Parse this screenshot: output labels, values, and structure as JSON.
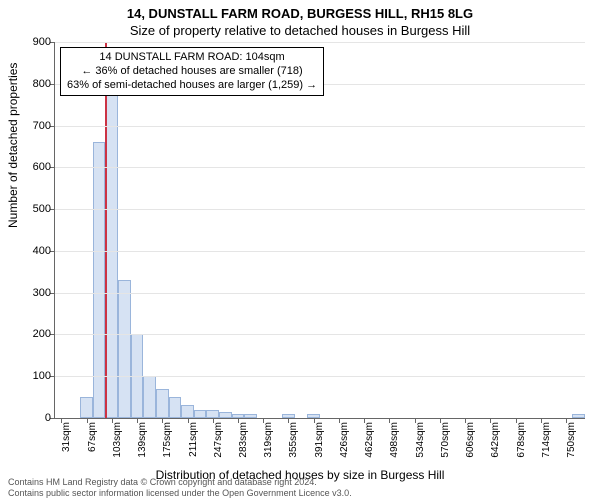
{
  "header": {
    "address": "14, DUNSTALL FARM ROAD, BURGESS HILL, RH15 8LG",
    "subtitle": "Size of property relative to detached houses in Burgess Hill"
  },
  "chart": {
    "type": "histogram",
    "ylabel": "Number of detached properties",
    "xlabel": "Distribution of detached houses by size in Burgess Hill",
    "ymax": 900,
    "ytick_step": 100,
    "grid_color": "#e5e5e5",
    "axis_color": "#666666",
    "bar_fill": "#d6e2f3",
    "bar_stroke": "#9ab5db",
    "highlight_color": "#cc3344",
    "highlight_x_index": 4,
    "xtick_labels": [
      "31sqm",
      "67sqm",
      "103sqm",
      "139sqm",
      "175sqm",
      "211sqm",
      "247sqm",
      "283sqm",
      "319sqm",
      "355sqm",
      "391sqm",
      "426sqm",
      "462sqm",
      "498sqm",
      "534sqm",
      "570sqm",
      "606sqm",
      "642sqm",
      "678sqm",
      "714sqm",
      "750sqm"
    ],
    "bar_values": [
      0,
      0,
      50,
      660,
      790,
      330,
      200,
      100,
      70,
      50,
      30,
      20,
      20,
      15,
      10,
      10,
      0,
      0,
      10,
      0,
      10,
      0,
      0,
      0,
      0,
      0,
      0,
      0,
      0,
      0,
      0,
      0,
      0,
      0,
      0,
      0,
      0,
      0,
      0,
      0,
      0,
      10
    ]
  },
  "infobox": {
    "line1": "14 DUNSTALL FARM ROAD: 104sqm",
    "line2": "← 36% of detached houses are smaller (718)",
    "line3": "63% of semi-detached houses are larger (1,259) →"
  },
  "attribution": {
    "line1": "Contains HM Land Registry data © Crown copyright and database right 2024.",
    "line2": "Contains public sector information licensed under the Open Government Licence v3.0."
  }
}
